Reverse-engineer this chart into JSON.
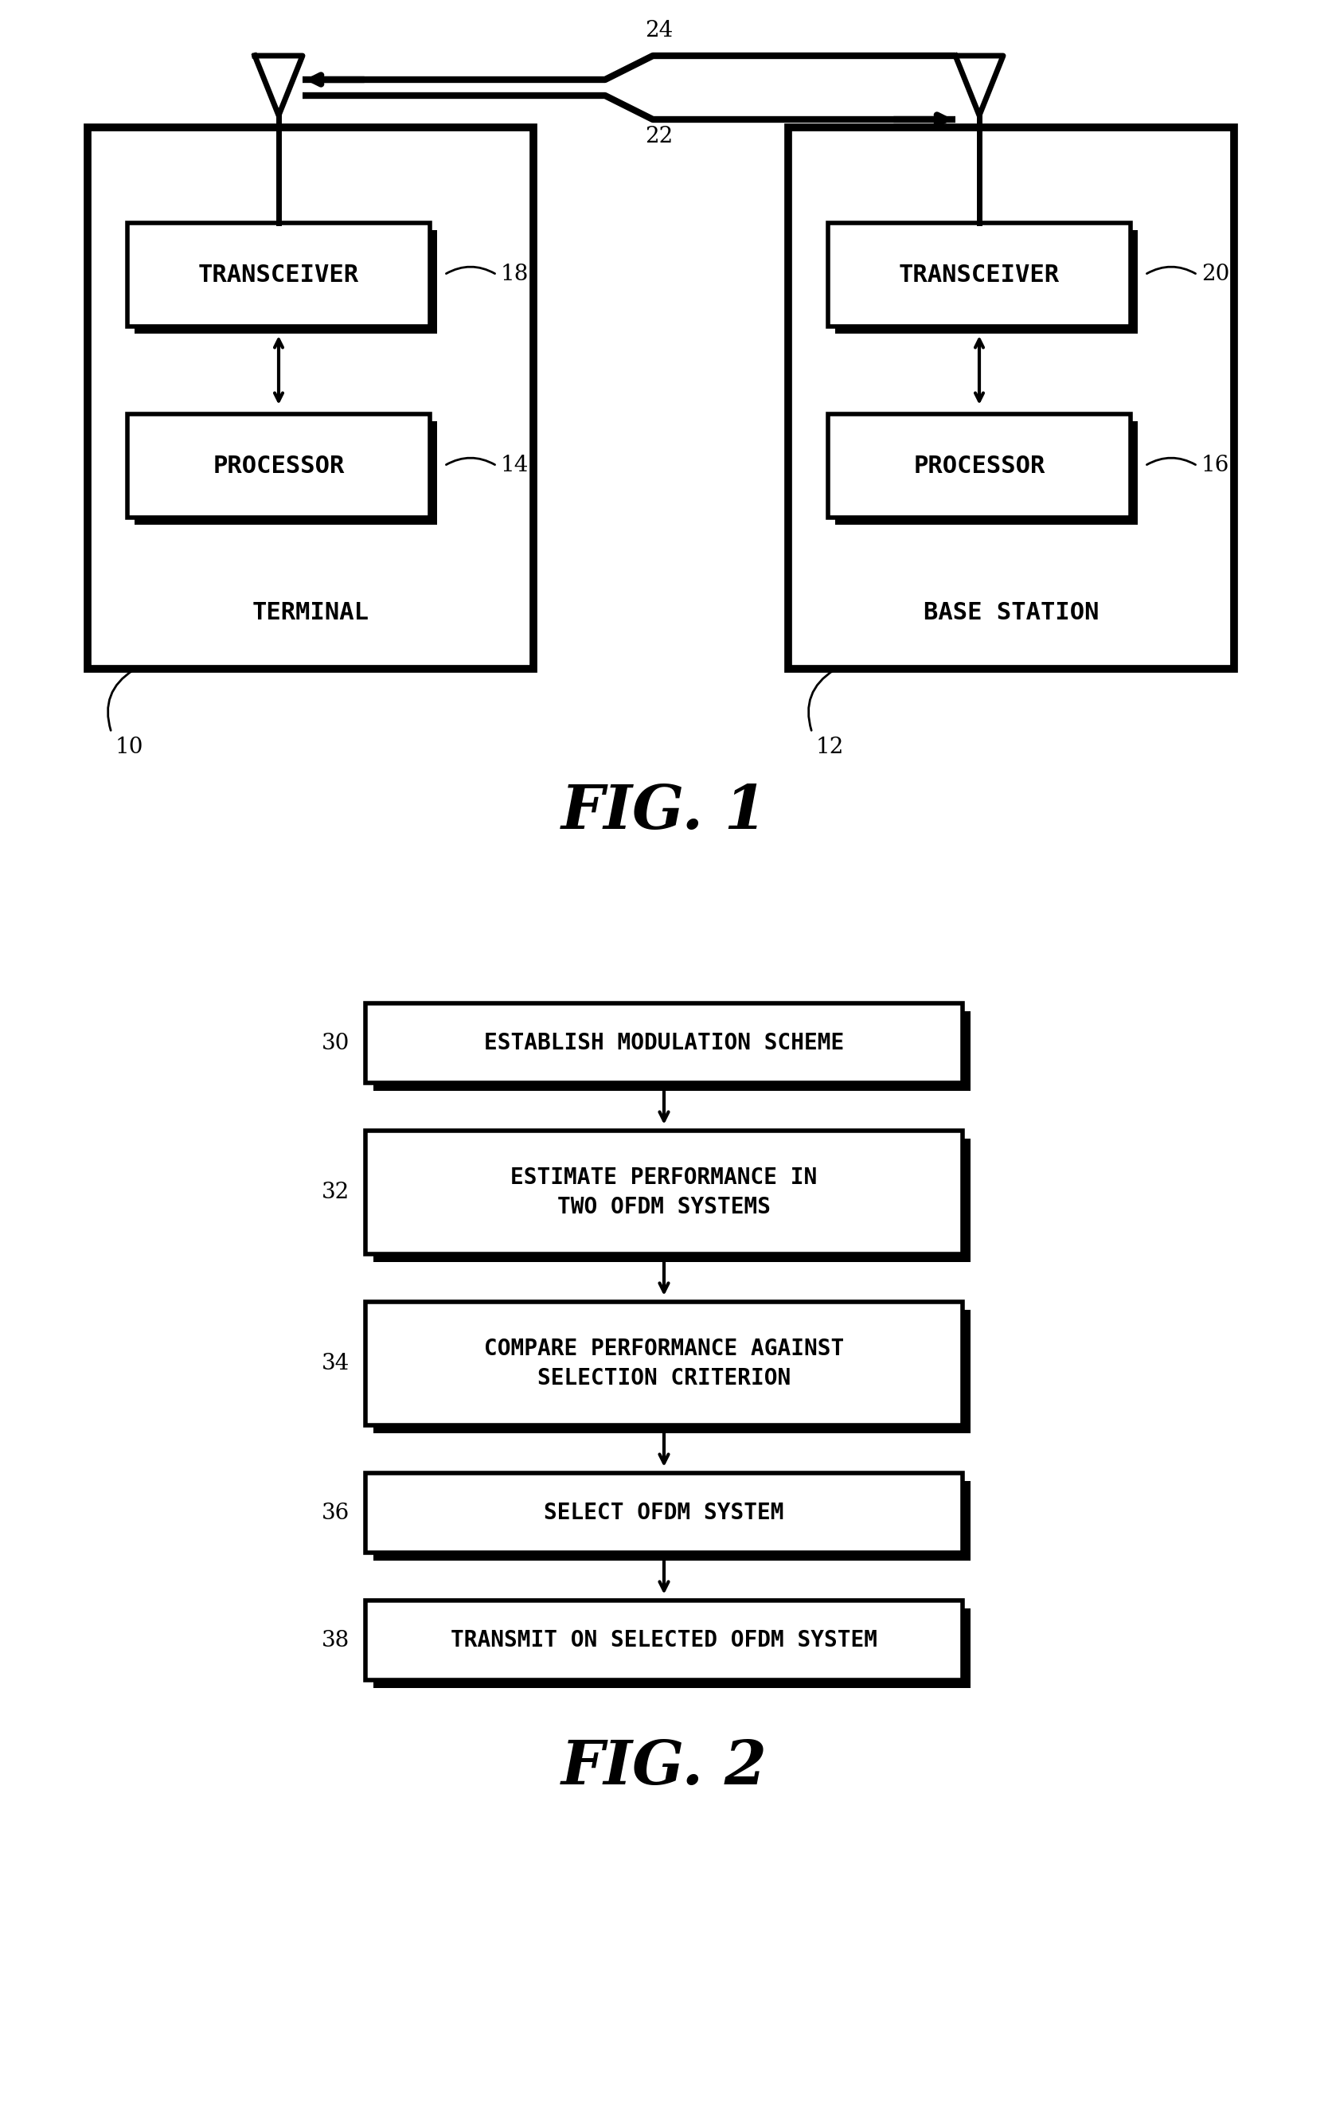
{
  "fig1": {
    "title": "FIG. 1",
    "terminal_label": "TERMINAL",
    "terminal_num": "10",
    "base_station_label": "BASE STATION",
    "base_station_num": "12",
    "transceiver_left": "TRANSCEIVER",
    "transceiver_right": "TRANSCEIVER",
    "transceiver_left_num": "18",
    "transceiver_right_num": "20",
    "processor_left": "PROCESSOR",
    "processor_right": "PROCESSOR",
    "processor_left_num": "14",
    "processor_right_num": "16",
    "arrow_top_num": "24",
    "arrow_bot_num": "22"
  },
  "fig2": {
    "title": "FIG. 2",
    "boxes": [
      {
        "label": "ESTABLISH MODULATION SCHEME",
        "num": "30"
      },
      {
        "label": "ESTIMATE PERFORMANCE IN\nTWO OFDM SYSTEMS",
        "num": "32"
      },
      {
        "label": "COMPARE PERFORMANCE AGAINST\nSELECTION CRITERION",
        "num": "34"
      },
      {
        "label": "SELECT OFDM SYSTEM",
        "num": "36"
      },
      {
        "label": "TRANSMIT ON SELECTED OFDM SYSTEM",
        "num": "38"
      }
    ]
  },
  "bg_color": "#ffffff",
  "line_color": "#000000"
}
